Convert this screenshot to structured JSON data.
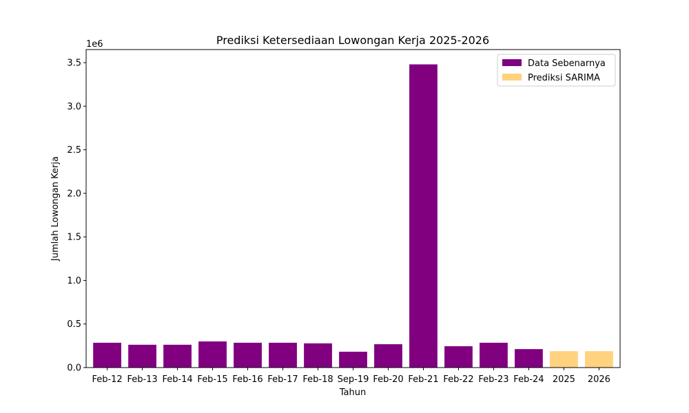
{
  "chart_data": {
    "type": "bar",
    "title": "Prediksi Ketersediaan Lowongan Kerja 2025-2026",
    "xlabel": "Tahun",
    "ylabel": "Jumlah Lowongan Kerja",
    "y_offset_label": "1e6",
    "y_scale": 1000000,
    "ylim": [
      0,
      3650000
    ],
    "yticks": [
      0,
      500000,
      1000000,
      1500000,
      2000000,
      2500000,
      3000000,
      3500000
    ],
    "ytick_labels": [
      "0.0",
      "0.5",
      "1.0",
      "1.5",
      "2.0",
      "2.5",
      "3.0",
      "3.5"
    ],
    "grid": false,
    "legend": "top-right",
    "series": [
      {
        "name": "Data Sebenarnya",
        "color": "#800080",
        "categories": [
          "Feb-12",
          "Feb-13",
          "Feb-14",
          "Feb-15",
          "Feb-16",
          "Feb-17",
          "Feb-18",
          "Sep-19",
          "Feb-20",
          "Feb-21",
          "Feb-22",
          "Feb-23",
          "Feb-24"
        ],
        "values": [
          285000,
          262000,
          262000,
          300000,
          285000,
          285000,
          278000,
          182000,
          268000,
          3480000,
          245000,
          285000,
          212000
        ]
      },
      {
        "name": "Prediksi SARIMA",
        "color": "#ffd280",
        "categories": [
          "2025",
          "2026"
        ],
        "values": [
          188000,
          188000
        ]
      }
    ]
  }
}
